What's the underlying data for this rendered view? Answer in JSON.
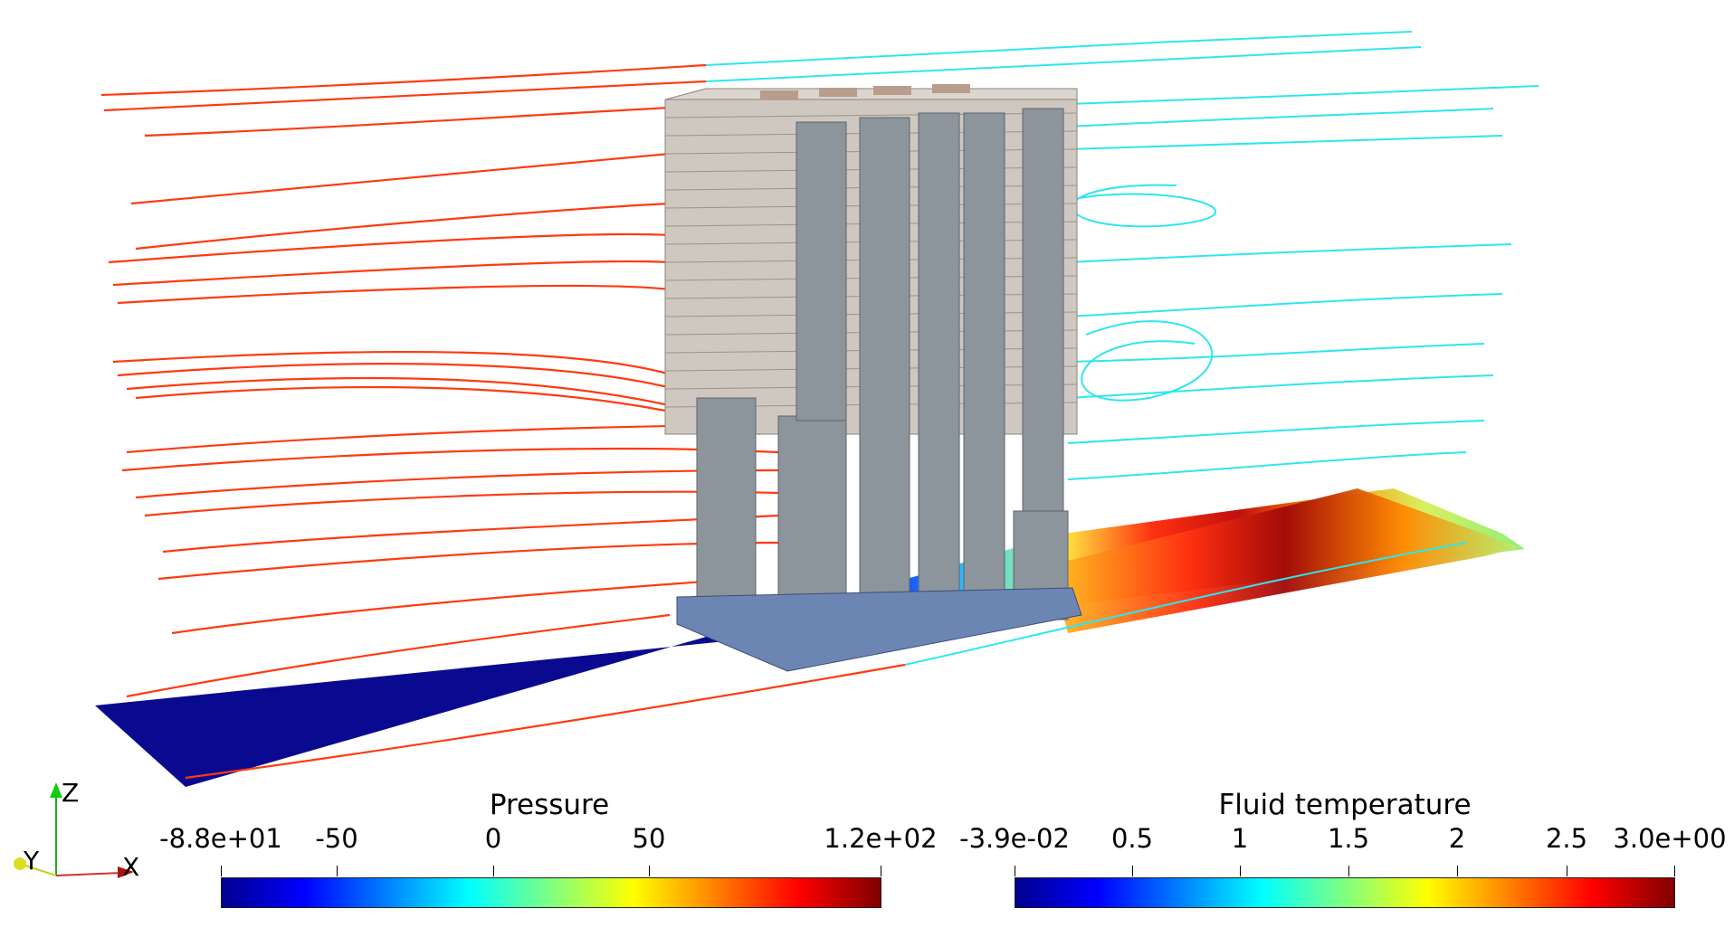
{
  "colorbars": {
    "pressure": {
      "title": "Pressure",
      "ticks": [
        "-8.8e+01",
        "-50",
        "0",
        "50",
        "1.2e+02"
      ]
    },
    "temperature": {
      "title": "Fluid temperature",
      "ticks": [
        "-3.9e-02",
        "0.5",
        "1",
        "1.5",
        "2",
        "2.5",
        "3.0e+00"
      ]
    }
  },
  "axes": {
    "x": "X",
    "y": "Y",
    "z": "Z"
  },
  "colors": {
    "inlet_streamline": "#ff3a10",
    "outlet_streamline": "#2ee6ee",
    "fins": "#cfc8c0",
    "pillars": "#8c949c",
    "base": "#6c86b4",
    "ground_cold": "#08098f"
  },
  "colormap": [
    "#00008f",
    "#0000ff",
    "#00ffff",
    "#ffff00",
    "#ff0000",
    "#800000"
  ]
}
